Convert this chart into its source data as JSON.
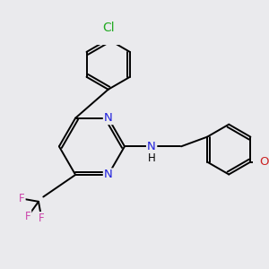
{
  "background_color": "#eaeaed",
  "bond_color": "#000000",
  "bond_lw": 1.4,
  "atom_colors": {
    "N": "#2020dd",
    "Cl": "#22aa22",
    "F": "#cc44aa",
    "O": "#cc2222",
    "C": "#000000",
    "H": "#000000"
  },
  "font_size": 8.5,
  "title": ""
}
